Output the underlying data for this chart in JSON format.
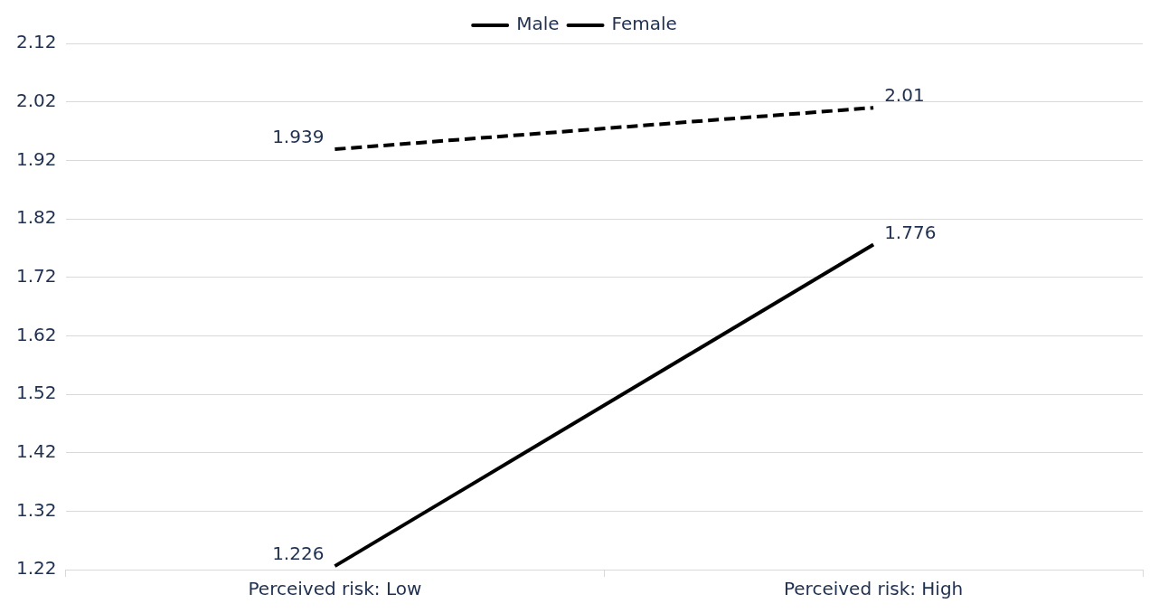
{
  "chart_data": {
    "type": "line",
    "categories": [
      "Perceived risk: Low",
      "Perceived risk: High"
    ],
    "series": [
      {
        "name": "Male",
        "color": "#000000",
        "line_style": "solid",
        "values": [
          1.226,
          1.776
        ]
      },
      {
        "name": "Female",
        "color": "#000000",
        "line_style": "dashed",
        "values": [
          1.939,
          2.01
        ]
      }
    ],
    "ylim": [
      1.22,
      2.12
    ],
    "yticks": [
      1.22,
      1.32,
      1.42,
      1.52,
      1.62,
      1.72,
      1.82,
      1.92,
      2.02,
      2.12
    ],
    "grid": "y",
    "legend": "top",
    "marker": "none",
    "data_labels": true
  }
}
